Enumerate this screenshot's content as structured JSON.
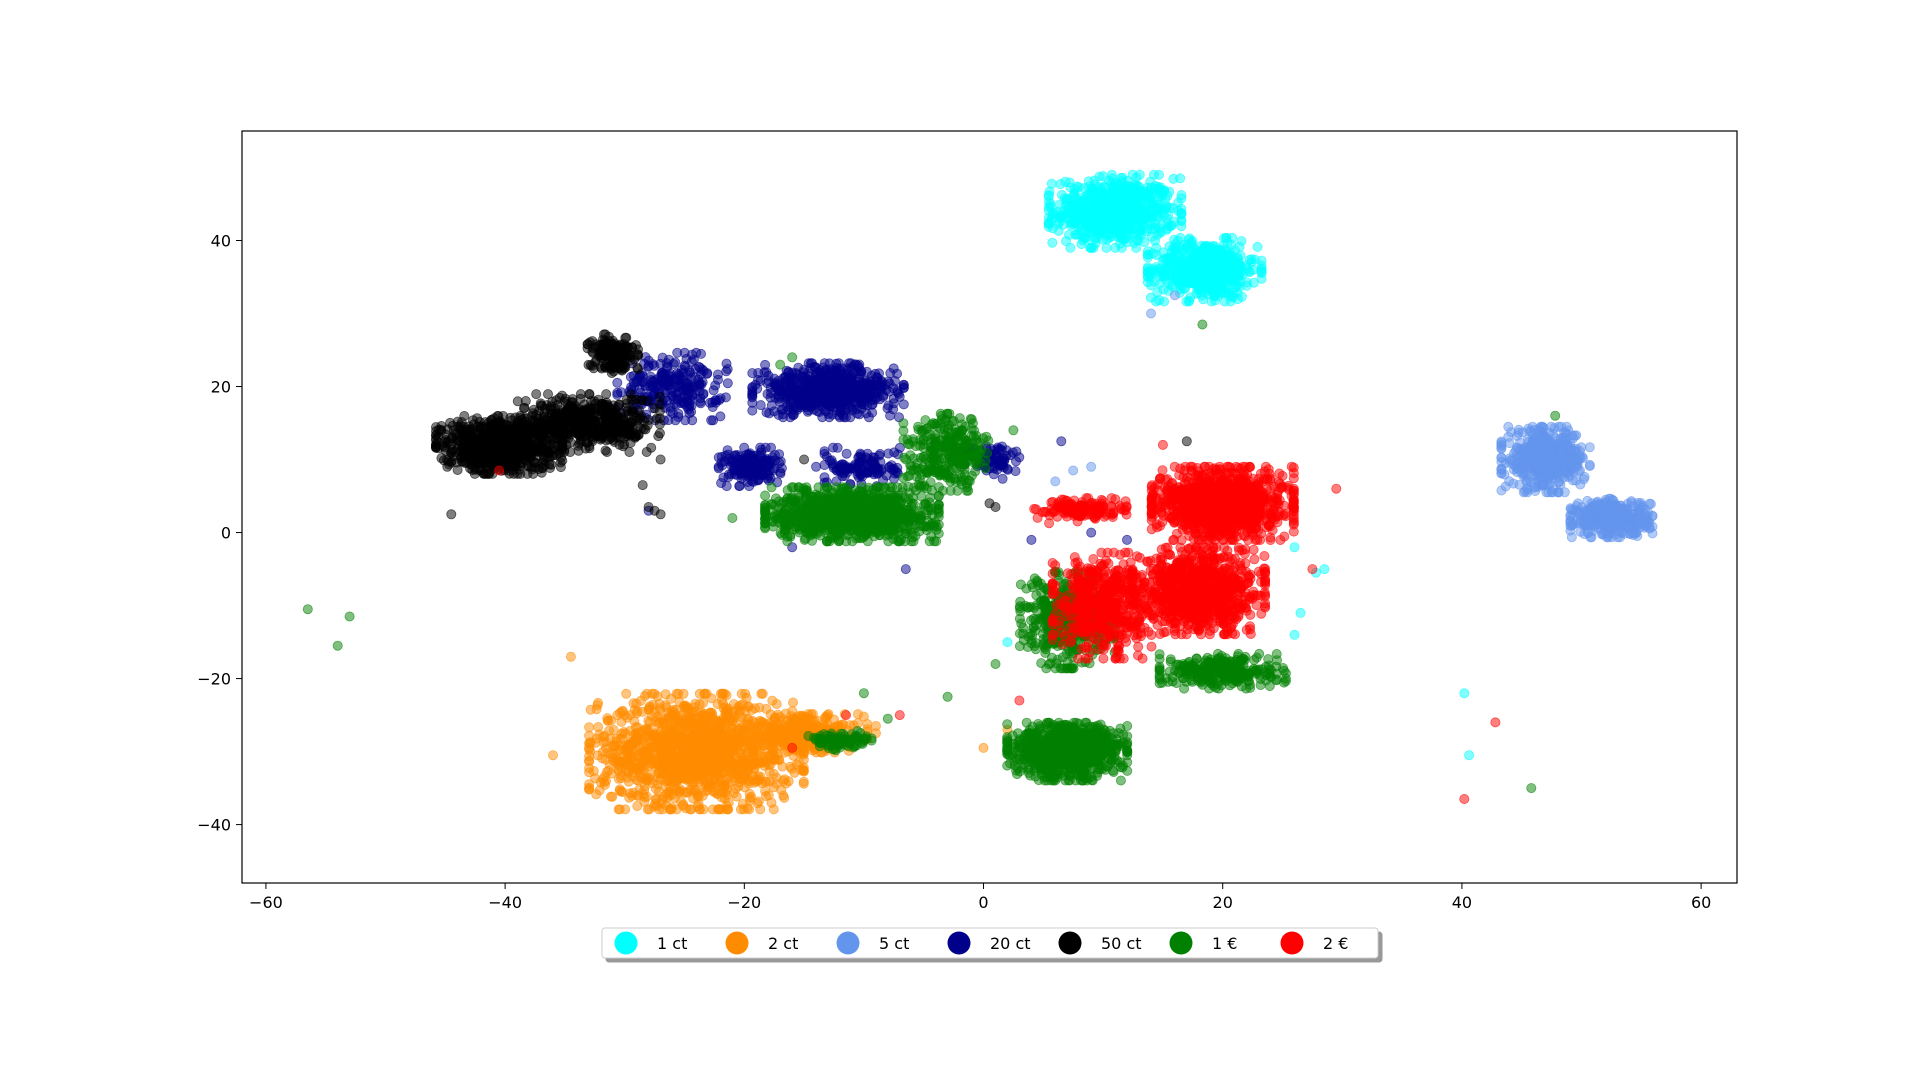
{
  "chart_data": {
    "type": "scatter",
    "title": "",
    "xlabel": "",
    "ylabel": "",
    "xlim": [
      -62,
      63
    ],
    "ylim": [
      -48,
      55
    ],
    "xticks": [
      -60,
      -40,
      -20,
      0,
      20,
      40,
      60
    ],
    "yticks": [
      -40,
      -20,
      0,
      20,
      40
    ],
    "xtick_labels": [
      "−60",
      "−40",
      "−20",
      "0",
      "20",
      "40",
      "60"
    ],
    "ytick_labels": [
      "−40",
      "−20",
      "0",
      "20",
      "40"
    ],
    "grid": false,
    "legend_position": "bottom-center",
    "legend_columns": 7,
    "marker_opacity": 0.5,
    "series": [
      {
        "name": "1 ct",
        "color": "#00ffff",
        "clusters": [
          {
            "center": [
              11,
              44
            ],
            "spread": [
              4.2,
              3.8
            ],
            "count": 650
          },
          {
            "center": [
              18.5,
              36
            ],
            "spread": [
              3.6,
              3.3
            ],
            "count": 550
          }
        ],
        "outliers": [
          [
            40.2,
            -22
          ],
          [
            40.6,
            -30.5
          ],
          [
            26,
            -2
          ],
          [
            26.5,
            -11
          ],
          [
            26,
            -14
          ],
          [
            2,
            -15
          ],
          [
            27.8,
            -5.5
          ],
          [
            28.5,
            -5
          ]
        ]
      },
      {
        "name": "2 ct",
        "color": "#ff8c00",
        "clusters": [
          {
            "center": [
              -24,
              -30
            ],
            "spread": [
              6.8,
              6.0
            ],
            "count": 1400
          },
          {
            "center": [
              -15,
              -27.5
            ],
            "spread": [
              4.0,
              2.0
            ],
            "count": 300
          }
        ],
        "outliers": [
          [
            -34.5,
            -17
          ],
          [
            -9,
            -26.5
          ],
          [
            -9,
            -27.5
          ],
          [
            0,
            -29.5
          ],
          [
            2,
            -27
          ],
          [
            -36,
            -30.5
          ]
        ]
      },
      {
        "name": "5 ct",
        "color": "#6495ed",
        "clusters": [
          {
            "center": [
              47,
              10
            ],
            "spread": [
              2.8,
              3.4
            ],
            "count": 450
          },
          {
            "center": [
              52.5,
              2
            ],
            "spread": [
              2.6,
              2.0
            ],
            "count": 400
          }
        ],
        "outliers": [
          [
            6,
            7
          ],
          [
            7.5,
            8.5
          ],
          [
            9,
            9
          ],
          [
            14,
            30
          ],
          [
            16,
            32.5
          ]
        ]
      },
      {
        "name": "20 ct",
        "color": "#00008b",
        "clusters": [
          {
            "center": [
              -13,
              19.5
            ],
            "spread": [
              4.8,
              2.8
            ],
            "count": 600
          },
          {
            "center": [
              -26,
              20
            ],
            "spread": [
              3.5,
              3.5
            ],
            "count": 250
          },
          {
            "center": [
              -19.5,
              9
            ],
            "spread": [
              2.0,
              2.0
            ],
            "count": 180
          },
          {
            "center": [
              -10,
              9
            ],
            "spread": [
              2.5,
              2.0
            ],
            "count": 120
          },
          {
            "center": [
              1,
              10
            ],
            "spread": [
              2.0,
              2.0
            ],
            "count": 80
          }
        ],
        "outliers": [
          [
            6.5,
            12.5
          ],
          [
            -16,
            -2
          ],
          [
            -28,
            3
          ],
          [
            -14,
            9
          ],
          [
            -6.5,
            -5
          ],
          [
            4,
            -1
          ],
          [
            9,
            0
          ],
          [
            12,
            -1
          ]
        ]
      },
      {
        "name": "50 ct",
        "color": "#000000",
        "clusters": [
          {
            "center": [
              -40.5,
              12
            ],
            "spread": [
              4.0,
              3.0
            ],
            "count": 800
          },
          {
            "center": [
              -33,
              15
            ],
            "spread": [
              4.5,
              3.0
            ],
            "count": 500
          },
          {
            "center": [
              -31,
              24.5
            ],
            "spread": [
              1.6,
              2.0
            ],
            "count": 160
          }
        ],
        "outliers": [
          [
            -44.5,
            2.5
          ],
          [
            -28,
            3.5
          ],
          [
            -27.5,
            3
          ],
          [
            -27,
            2.5
          ],
          [
            -28.5,
            6.5
          ],
          [
            -27,
            10
          ],
          [
            0.5,
            4
          ],
          [
            1,
            3.5
          ],
          [
            -15,
            10
          ],
          [
            17,
            12.5
          ]
        ]
      },
      {
        "name": "1 €",
        "color": "#008000",
        "clusters": [
          {
            "center": [
              -11,
              2.5
            ],
            "spread": [
              5.5,
              2.8
            ],
            "count": 1100
          },
          {
            "center": [
              7,
              -30
            ],
            "spread": [
              3.8,
              3.0
            ],
            "count": 900
          },
          {
            "center": [
              -3,
              11
            ],
            "spread": [
              2.8,
              4.0
            ],
            "count": 300
          },
          {
            "center": [
              7,
              -12
            ],
            "spread": [
              3.0,
              5.0
            ],
            "count": 450
          },
          {
            "center": [
              20,
              -19
            ],
            "spread": [
              4.0,
              1.8
            ],
            "count": 300
          },
          {
            "center": [
              -12,
              -28.5
            ],
            "spread": [
              2.0,
              1.0
            ],
            "count": 100
          }
        ],
        "outliers": [
          [
            -56.5,
            -10.5
          ],
          [
            -53,
            -11.5
          ],
          [
            -54,
            -15.5
          ],
          [
            18.3,
            28.5
          ],
          [
            47.8,
            16
          ],
          [
            45.8,
            -35
          ],
          [
            -21,
            2
          ],
          [
            -17,
            23
          ],
          [
            -16,
            24
          ],
          [
            -3,
            -22.5
          ],
          [
            2.5,
            14
          ],
          [
            -8,
            -25.5
          ],
          [
            -10,
            -22
          ],
          [
            1,
            -18
          ]
        ]
      },
      {
        "name": "2 €",
        "color": "#ff0000",
        "clusters": [
          {
            "center": [
              20,
              4
            ],
            "spread": [
              4.5,
              3.8
            ],
            "count": 1100
          },
          {
            "center": [
              18,
              -8
            ],
            "spread": [
              4.2,
              4.5
            ],
            "count": 900
          },
          {
            "center": [
              10,
              -10
            ],
            "spread": [
              3.2,
              5.5
            ],
            "count": 500
          },
          {
            "center": [
              8,
              3
            ],
            "spread": [
              3.0,
              1.3
            ],
            "count": 150
          }
        ],
        "outliers": [
          [
            29.5,
            6
          ],
          [
            42.8,
            -26
          ],
          [
            40.2,
            -36.5
          ],
          [
            -40.5,
            8.5
          ],
          [
            -16,
            -29.5
          ],
          [
            -7,
            -25
          ],
          [
            -11.5,
            -25
          ],
          [
            3,
            -23
          ],
          [
            27.5,
            -5
          ],
          [
            15,
            12
          ]
        ]
      }
    ]
  }
}
